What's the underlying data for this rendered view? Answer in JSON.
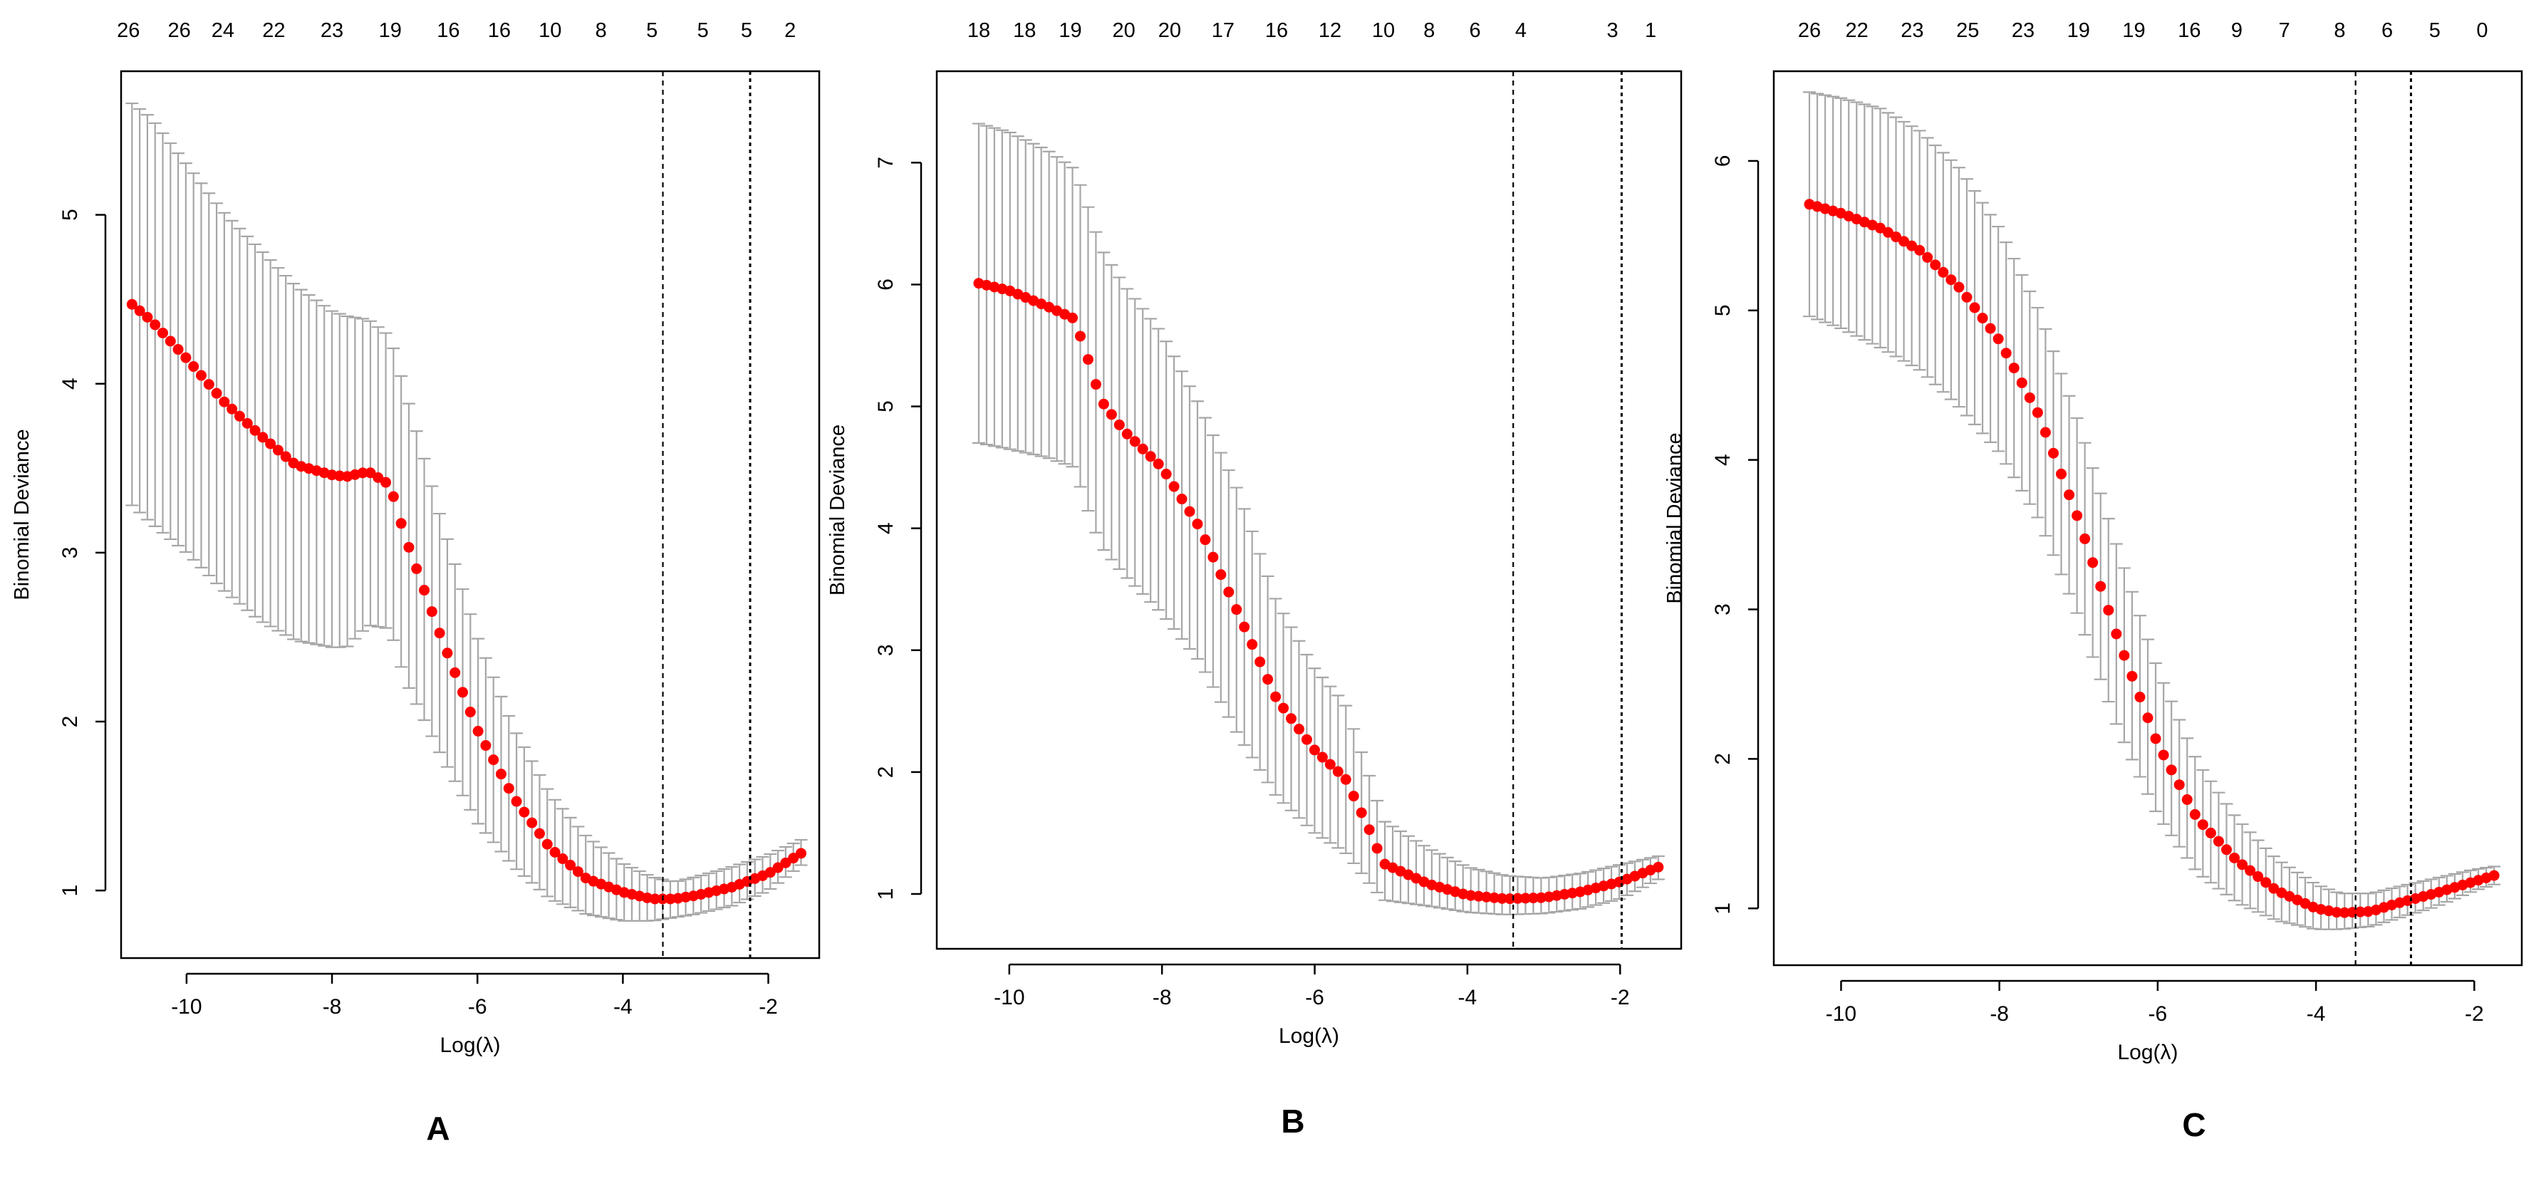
{
  "chart_data": [
    {
      "type": "line",
      "panel_label": "A",
      "xlabel": "Log(λ)",
      "ylabel": "Binomial Deviance",
      "xlim": [
        -10.9,
        -1.3
      ],
      "ylim": [
        0.6,
        5.85
      ],
      "xticks": [
        -10,
        -8,
        -6,
        -4,
        -2
      ],
      "yticks": [
        1,
        2,
        3,
        4,
        5
      ],
      "top_axis_labels": [
        "26",
        "26",
        "24",
        "22",
        "23",
        "19",
        "16",
        "16",
        "10",
        "8",
        "5",
        "5",
        "5",
        "2"
      ],
      "top_axis_positions": [
        -10.8,
        -10.1,
        -9.5,
        -8.8,
        -8.0,
        -7.2,
        -6.4,
        -5.7,
        -5.0,
        -4.3,
        -3.6,
        -2.9,
        -2.3,
        -1.7
      ],
      "vlines": [
        -3.45,
        -2.25
      ],
      "curve": {
        "x": [
          -10.75,
          -10.5,
          -10.0,
          -9.5,
          -9.0,
          -8.5,
          -8.0,
          -7.8,
          -7.5,
          -7.2,
          -7.0,
          -6.5,
          -6.0,
          -5.5,
          -5.0,
          -4.5,
          -4.0,
          -3.6,
          -3.3,
          -3.0,
          -2.5,
          -2.0,
          -1.55
        ],
        "mean": [
          4.47,
          4.38,
          4.15,
          3.9,
          3.7,
          3.52,
          3.46,
          3.45,
          3.48,
          3.4,
          3.1,
          2.5,
          1.95,
          1.55,
          1.25,
          1.07,
          0.99,
          0.95,
          0.95,
          0.97,
          1.02,
          1.1,
          1.22
        ],
        "upper": [
          5.66,
          5.58,
          5.3,
          5.02,
          4.8,
          4.58,
          4.43,
          4.4,
          4.38,
          4.28,
          3.97,
          3.2,
          2.5,
          1.96,
          1.57,
          1.32,
          1.16,
          1.08,
          1.05,
          1.08,
          1.14,
          1.21,
          1.3
        ],
        "lower": [
          3.28,
          3.18,
          3.0,
          2.78,
          2.6,
          2.48,
          2.44,
          2.44,
          2.57,
          2.55,
          2.25,
          1.8,
          1.4,
          1.14,
          0.95,
          0.86,
          0.82,
          0.82,
          0.84,
          0.86,
          0.91,
          1.0,
          1.15
        ]
      }
    },
    {
      "type": "line",
      "panel_label": "B",
      "xlabel": "Log(λ)",
      "ylabel": "Binomial Deviance",
      "xlim": [
        -10.95,
        -1.2
      ],
      "ylim": [
        0.55,
        7.75
      ],
      "xticks": [
        -10,
        -8,
        -6,
        -4,
        -2
      ],
      "yticks": [
        1,
        2,
        3,
        4,
        5,
        6,
        7
      ],
      "top_axis_labels": [
        "18",
        "18",
        "19",
        "20",
        "20",
        "17",
        "16",
        "12",
        "10",
        "8",
        "6",
        "4",
        "3",
        "1"
      ],
      "top_axis_positions": [
        -10.4,
        -9.8,
        -9.2,
        -8.5,
        -7.9,
        -7.2,
        -6.5,
        -5.8,
        -5.1,
        -4.5,
        -3.9,
        -3.3,
        -2.1,
        -1.6
      ],
      "vlines": [
        -3.4,
        -1.98
      ],
      "curve": {
        "x": [
          -10.4,
          -10.0,
          -9.5,
          -9.15,
          -9.0,
          -8.8,
          -8.5,
          -8.0,
          -7.5,
          -7.0,
          -6.5,
          -6.0,
          -5.6,
          -5.3,
          -5.1,
          -4.5,
          -4.0,
          -3.5,
          -3.0,
          -2.5,
          -2.0,
          -1.5
        ],
        "mean": [
          6.01,
          5.95,
          5.82,
          5.72,
          5.45,
          5.05,
          4.8,
          4.5,
          4.0,
          3.3,
          2.6,
          2.18,
          1.95,
          1.55,
          1.25,
          1.08,
          0.99,
          0.96,
          0.97,
          1.02,
          1.1,
          1.22
        ],
        "upper": [
          7.32,
          7.25,
          7.1,
          6.95,
          6.7,
          6.3,
          6.0,
          5.6,
          5.0,
          4.3,
          3.4,
          2.85,
          2.56,
          2.0,
          1.6,
          1.37,
          1.22,
          1.15,
          1.13,
          1.17,
          1.24,
          1.31
        ],
        "lower": [
          4.7,
          4.65,
          4.58,
          4.5,
          4.2,
          3.85,
          3.62,
          3.3,
          2.9,
          2.3,
          1.8,
          1.5,
          1.34,
          1.1,
          0.95,
          0.9,
          0.85,
          0.83,
          0.84,
          0.88,
          0.96,
          1.12
        ]
      }
    },
    {
      "type": "line",
      "panel_label": "C",
      "xlabel": "Log(λ)",
      "ylabel": "Binomial Deviance",
      "xlim": [
        -10.85,
        -1.4
      ],
      "ylim": [
        0.62,
        6.6
      ],
      "xticks": [
        -10,
        -8,
        -6,
        -4,
        -2
      ],
      "yticks": [
        1,
        2,
        3,
        4,
        5,
        6
      ],
      "top_axis_labels": [
        "26",
        "22",
        "23",
        "25",
        "23",
        "19",
        "19",
        "16",
        "9",
        "7",
        "8",
        "6",
        "5",
        "0"
      ],
      "top_axis_positions": [
        -10.4,
        -9.8,
        -9.1,
        -8.4,
        -7.7,
        -7.0,
        -6.3,
        -5.6,
        -5.0,
        -4.4,
        -3.7,
        -3.1,
        -2.5,
        -1.9
      ],
      "vlines": [
        -3.5,
        -2.8
      ],
      "curve": {
        "x": [
          -10.4,
          -10.0,
          -9.5,
          -9.0,
          -8.5,
          -8.0,
          -7.5,
          -7.0,
          -6.5,
          -6.0,
          -5.5,
          -5.0,
          -4.5,
          -4.0,
          -3.7,
          -3.3,
          -3.0,
          -2.5,
          -2.0,
          -1.75
        ],
        "mean": [
          5.71,
          5.65,
          5.55,
          5.4,
          5.15,
          4.8,
          4.3,
          3.6,
          2.8,
          2.1,
          1.6,
          1.32,
          1.12,
          1.0,
          0.97,
          0.98,
          1.03,
          1.1,
          1.18,
          1.22
        ],
        "upper": [
          6.46,
          6.42,
          6.35,
          6.2,
          5.95,
          5.55,
          5.0,
          4.25,
          3.4,
          2.6,
          1.98,
          1.6,
          1.33,
          1.16,
          1.1,
          1.1,
          1.14,
          1.2,
          1.26,
          1.28
        ],
        "lower": [
          4.96,
          4.88,
          4.75,
          4.6,
          4.35,
          4.05,
          3.6,
          2.95,
          2.2,
          1.62,
          1.24,
          1.04,
          0.92,
          0.86,
          0.86,
          0.88,
          0.93,
          1.01,
          1.12,
          1.16
        ]
      }
    }
  ]
}
